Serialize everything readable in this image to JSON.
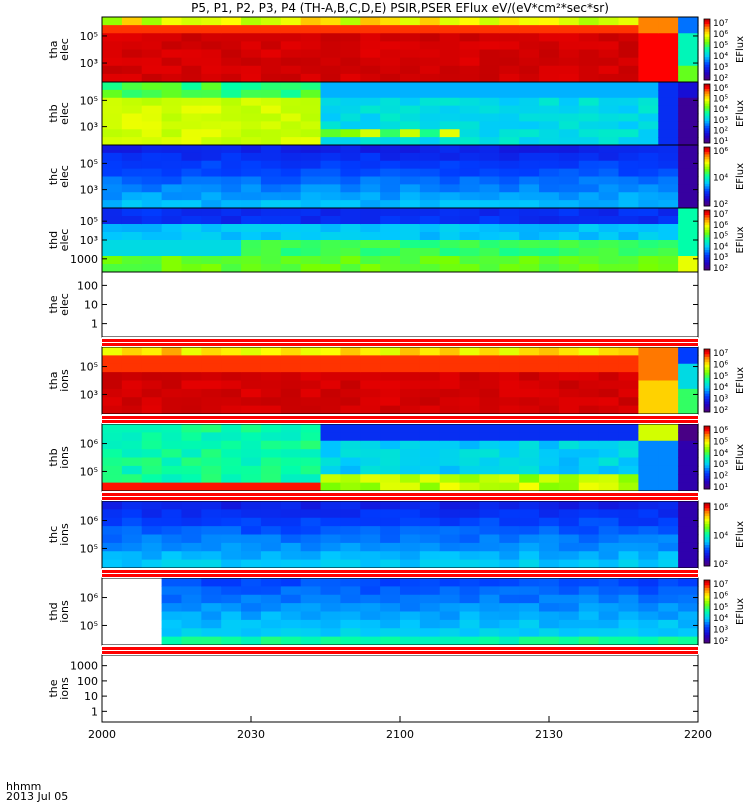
{
  "title": "P5, P1, P2, P3, P4 (TH-A,B,C,D,E) PSIR,PSER EFlux eV/(eV*cm²*sec*sr)",
  "footer": {
    "line1": "hhmm",
    "line2": "2013 Jul 05"
  },
  "chart_data": {
    "type": "heatmap",
    "x_time_labels": [
      "2000",
      "2030",
      "2100",
      "2130",
      "2200"
    ],
    "x_range_minutes": [
      0,
      120
    ],
    "colorbar_label": "EFlux",
    "panels": [
      {
        "name": "tha-elec",
        "ylabel": [
          "tha",
          "elec"
        ],
        "yticks": [
          "10⁵",
          "10³"
        ],
        "colorbar": [
          "10⁷",
          "10⁶",
          "10⁵",
          "10⁴",
          "10³",
          "10²"
        ],
        "scheme": "tha_elec",
        "empty": false
      },
      {
        "name": "thb-elec",
        "ylabel": [
          "thb",
          "elec"
        ],
        "yticks": [
          "10⁵",
          "10³"
        ],
        "colorbar": [
          "10⁶",
          "10⁵",
          "10⁴",
          "10³",
          "10²",
          "10¹"
        ],
        "scheme": "thb_elec",
        "empty": false
      },
      {
        "name": "thc-elec",
        "ylabel": [
          "thc",
          "elec"
        ],
        "yticks": [
          "10⁵",
          "10³"
        ],
        "colorbar": [
          "10⁶",
          "10⁴",
          "10²"
        ],
        "scheme": "thc_elec",
        "empty": false
      },
      {
        "name": "thd-elec",
        "ylabel": [
          "thd",
          "elec"
        ],
        "yticks": [
          "10⁵",
          "10³",
          "1000"
        ],
        "colorbar": [
          "10⁷",
          "10⁶",
          "10⁵",
          "10⁴",
          "10³",
          "10²"
        ],
        "scheme": "thd_elec",
        "empty": false
      },
      {
        "name": "the-elec",
        "ylabel": [
          "the",
          "elec"
        ],
        "yticks": [
          "100",
          "10",
          "1"
        ],
        "colorbar": [],
        "scheme": "none",
        "empty": true
      },
      {
        "name": "tha-ions",
        "ylabel": [
          "tha",
          "ions"
        ],
        "yticks": [
          "10⁵",
          "10³"
        ],
        "colorbar": [
          "10⁷",
          "10⁶",
          "10⁵",
          "10⁴",
          "10³",
          "10²"
        ],
        "scheme": "tha_ions",
        "empty": false
      },
      {
        "name": "thb-ions",
        "ylabel": [
          "thb",
          "ions"
        ],
        "yticks": [
          "10⁶",
          "10⁵"
        ],
        "colorbar": [
          "10⁶",
          "10⁵",
          "10⁴",
          "10³",
          "10²",
          "10¹"
        ],
        "scheme": "thb_ions",
        "empty": false
      },
      {
        "name": "thc-ions",
        "ylabel": [
          "thc",
          "ions"
        ],
        "yticks": [
          "10⁶",
          "10⁵"
        ],
        "colorbar": [
          "10⁶",
          "10⁴",
          "10²"
        ],
        "scheme": "thc_ions",
        "empty": false
      },
      {
        "name": "thd-ions",
        "ylabel": [
          "thd",
          "ions"
        ],
        "yticks": [
          "10⁶",
          "10⁵"
        ],
        "colorbar": [
          "10⁷",
          "10⁶",
          "10⁵",
          "10⁴",
          "10³",
          "10²"
        ],
        "scheme": "thd_ions",
        "empty": false
      },
      {
        "name": "the-ions",
        "ylabel": [
          "the",
          "ions"
        ],
        "yticks": [
          "1000",
          "100",
          "10",
          "1"
        ],
        "colorbar": [],
        "scheme": "none",
        "empty": true
      }
    ]
  }
}
